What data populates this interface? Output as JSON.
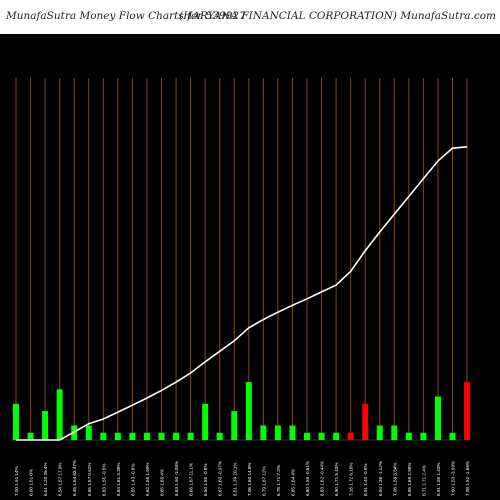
{
  "header": {
    "left_title": "MunafaSutra  Money Flow  Charts for 539927",
    "right_title": "(HARYANA FINANCIAL  CORPORATION) MunafaSutra.com"
  },
  "colors": {
    "background": "#000000",
    "up_bar": "#00ff00",
    "down_bar": "#ff0000",
    "gridline": "#8b4513",
    "line": "#ffffff"
  },
  "chart_data": {
    "type": "bar",
    "title": "",
    "grid": true,
    "categories": [
      "7.00 1.51 14%",
      "6.00 1.51 0%",
      "6.51 1.20 39.4%",
      "6.54 1.57 17.9%",
      "6.45 1.54 63.47%",
      "6.65 1.57 0.62%",
      "6.83 1.55 -0.5%",
      "6.84 1.61 3.36%",
      "6.55 1.43 -0.8%",
      "6.62 1.55 1.99%",
      "6.65 1.65 4%",
      "6.63 1.50 -3.08%",
      "6.66 1.67 11.1%",
      "6.50 1.85 -0.8%",
      "6.67 1.60 -0.97%",
      "6.51 1.39 20.1%",
      "7.06 1.60 14.8%",
      "6.79 1.67 12%",
      "6.78 1.71 7.3%",
      "6.85 1.64 4%",
      "6.80 1.55 -0.61%",
      "6.83 1.62 -0.44%",
      "6.90 1.71 5.43%",
      "7.16 1.72 6.18%",
      "6.91 1.40 -0.5%",
      "6.94 1.38 -1.12%",
      "7.06 1.58 3.84%",
      "6.95 1.69 2.98%",
      "6.71 1.71 2.4%",
      "6.91 1.55 1.43%",
      "7.60 1.53 -3.09%",
      "7.08 1.52 -1.68%"
    ],
    "series": [
      {
        "type": "bar",
        "values": [
          10,
          2,
          8,
          14,
          4,
          4,
          2,
          2,
          2,
          2,
          2,
          2,
          2,
          10,
          2,
          8,
          16,
          4,
          4,
          4,
          2,
          2,
          2,
          2,
          10,
          4,
          4,
          2,
          2,
          12,
          2,
          16
        ],
        "colors": [
          "green",
          "green",
          "green",
          "green",
          "green",
          "green",
          "green",
          "green",
          "green",
          "green",
          "green",
          "green",
          "green",
          "green",
          "green",
          "green",
          "green",
          "green",
          "green",
          "green",
          "green",
          "green",
          "green",
          "red",
          "red",
          "green",
          "green",
          "green",
          "green",
          "green",
          "green",
          "red"
        ]
      },
      {
        "type": "line",
        "values": [
          0,
          0,
          0,
          0,
          2.2,
          4.5,
          5.8,
          7.7,
          9.6,
          11.6,
          13.7,
          16,
          18.5,
          21.6,
          24.5,
          27.4,
          31,
          33.3,
          35.3,
          37.2,
          39,
          40.9,
          42.8,
          46.6,
          52.3,
          57.5,
          62.4,
          67.3,
          72.2,
          77.1,
          80.6,
          81
        ]
      }
    ],
    "ylim": [
      0,
      100
    ]
  }
}
